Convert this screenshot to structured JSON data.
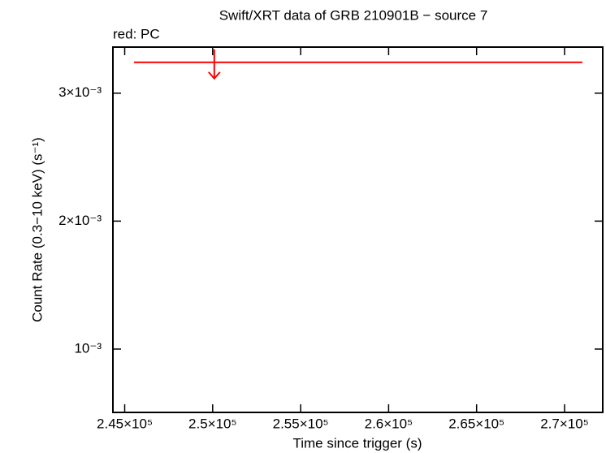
{
  "chart_data": {
    "type": "upper-limit",
    "title": "Swift/XRT data of GRB 210901B − source 7",
    "legend_text": "red: PC",
    "x_label": "Time since trigger (s)",
    "y_label": "Count Rate (0.3−10 keV) (s⁻¹)",
    "xlim": [
      244330,
      272170
    ],
    "ylim": [
      0.000505,
      0.00336
    ],
    "xticks": [
      {
        "value": 245000,
        "label": "2.45×10⁵"
      },
      {
        "value": 250000,
        "label": "2.5×10⁵"
      },
      {
        "value": 255000,
        "label": "2.55×10⁵"
      },
      {
        "value": 260000,
        "label": "2.6×10⁵"
      },
      {
        "value": 265000,
        "label": "2.65×10⁵"
      },
      {
        "value": 270000,
        "label": "2.7×10⁵"
      }
    ],
    "yticks": [
      {
        "value": 0.001,
        "label": "10⁻³"
      },
      {
        "value": 0.002,
        "label": "2×10⁻³"
      },
      {
        "value": 0.003,
        "label": "3×10⁻³"
      }
    ],
    "series": [
      {
        "name": "PC",
        "color": "#ff0000",
        "upper_limit": true,
        "x": [
          250092
        ],
        "x_start": [
          245530
        ],
        "x_end": [
          271014
        ],
        "values": [
          0.003241
        ]
      }
    ]
  }
}
